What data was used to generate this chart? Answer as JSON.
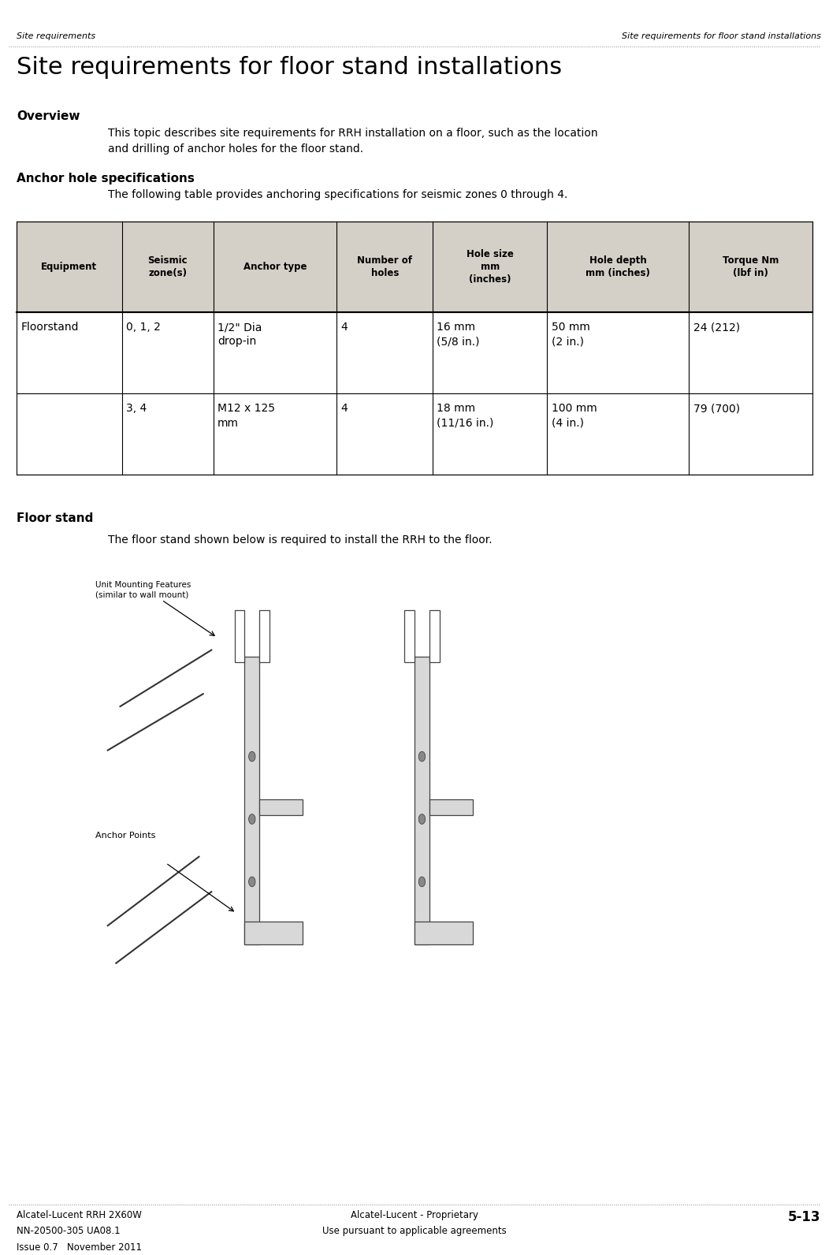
{
  "bg_color": "#ffffff",
  "header_left": "Site requirements",
  "header_right": "Site requirements for floor stand installations",
  "title": "Site requirements for floor stand installations",
  "title_fontsize": 22,
  "overview_heading": "Overview",
  "overview_text": "This topic describes site requirements for RRH installation on a floor, such as the location\nand drilling of anchor holes for the floor stand.",
  "anchor_heading": "Anchor hole specifications",
  "anchor_intro": "The following table provides anchoring specifications for seismic zones 0 through 4.",
  "table_header_bg": "#d4d0c8",
  "table_border_color": "#000000",
  "table_headers": [
    "Equipment",
    "Seismic\nzone(s)",
    "Anchor type",
    "Number of\nholes",
    "Hole size\nmm\n(inches)",
    "Hole depth\nmm (inches)",
    "Torque Nm\n(lbf in)"
  ],
  "table_col_props": [
    0.115,
    0.1,
    0.135,
    0.105,
    0.125,
    0.155,
    0.135
  ],
  "table_rows": [
    [
      "Floorstand",
      "0, 1, 2",
      "1/2\" Dia\ndrop-in",
      "4",
      "16 mm\n(5/8 in.)",
      "50 mm\n(2 in.)",
      "24 (212)"
    ],
    [
      "",
      "3, 4",
      "M12 x 125\nmm",
      "4",
      "18 mm\n(11/16 in.)",
      "100 mm\n(4 in.)",
      "79 (700)"
    ]
  ],
  "floor_stand_heading": "Floor stand",
  "floor_stand_text": "The floor stand shown below is required to install the RRH to the floor.",
  "unit_label": "Unit Mounting Features\n(similar to wall mount)",
  "anchor_label": "Anchor Points",
  "footer_left1": "Alcatel-Lucent RRH 2X60W",
  "footer_left2": "NN-20500-305 UA08.1",
  "footer_left3": "Issue 0.7   November 2011",
  "footer_center1": "Alcatel-Lucent - Proprietary",
  "footer_center2": "Use pursuant to applicable agreements",
  "footer_right": "5-13",
  "body_fontsize": 10,
  "heading_fontsize": 11,
  "footer_fontsize": 8.5,
  "header_fontsize": 8
}
